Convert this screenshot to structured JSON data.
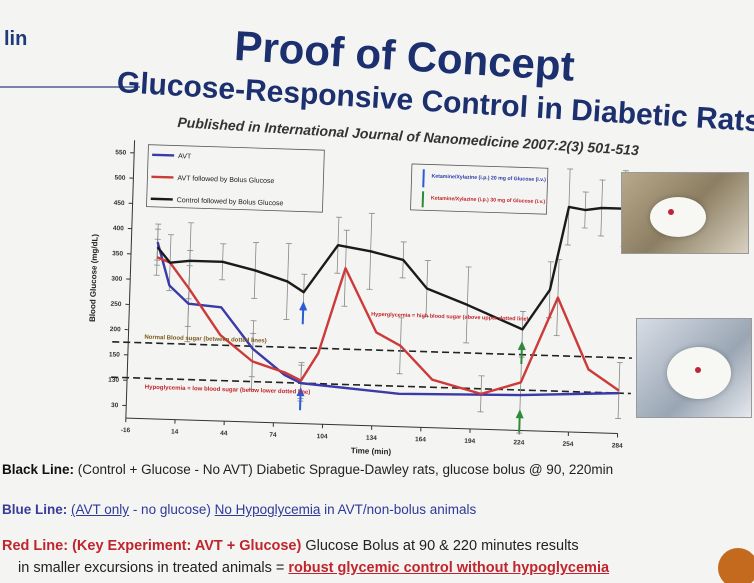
{
  "slide": {
    "corner_label": "lin",
    "title": "Proof of Concept",
    "subtitle": "Glucose-Responsive Control in Diabetic Rats",
    "citation": "Published in International Journal of Nanomedicine 2007:2(3) 501-513"
  },
  "chart_data": {
    "type": "line",
    "title": "",
    "xlabel": "Time (min)",
    "ylabel": "Blood Glucose (mg/dL)",
    "xlim": [
      -16,
      284
    ],
    "ylim": [
      0,
      550
    ],
    "x_ticks": [
      "-16",
      "14",
      "44",
      "74",
      "104",
      "134",
      "164",
      "194",
      "224",
      "254",
      "284"
    ],
    "y_ticks": [
      "30",
      "130",
      "150",
      "200",
      "250",
      "300",
      "350",
      "400",
      "450",
      "500",
      "550"
    ],
    "series": [
      {
        "name": "AVT",
        "color": "#3a3aa8",
        "x": [
          0,
          8,
          20,
          40,
          60,
          80,
          90,
          150,
          224,
          284
        ],
        "y": [
          350,
          265,
          230,
          225,
          145,
          95,
          80,
          65,
          70,
          80
        ]
      },
      {
        "name": "AVT followed by Bolus Glucose",
        "color": "#cc3a3a",
        "x": [
          0,
          8,
          20,
          40,
          60,
          80,
          90,
          100,
          115,
          135,
          150,
          170,
          200,
          224,
          245,
          265,
          284
        ],
        "y": [
          320,
          310,
          260,
          170,
          120,
          100,
          85,
          140,
          310,
          185,
          160,
          95,
          70,
          95,
          265,
          125,
          85
        ]
      },
      {
        "name": "Control followed by Bolus Glucose",
        "color": "#1a1a1a",
        "x": [
          0,
          8,
          20,
          40,
          60,
          80,
          90,
          110,
          130,
          150,
          165,
          190,
          224,
          240,
          250,
          260,
          270,
          284
        ],
        "y": [
          340,
          310,
          315,
          315,
          300,
          280,
          260,
          355,
          345,
          330,
          275,
          245,
          200,
          280,
          445,
          440,
          445,
          445
        ]
      }
    ],
    "reference_lines": [
      {
        "label": "upper",
        "y": 150
      },
      {
        "label": "lower",
        "y": 80
      }
    ],
    "annotations": [
      {
        "id": "injection_blue",
        "text": "Ketamine/Xylazine (i.p.) 20 mg of Glucose (i.v.)"
      },
      {
        "id": "injection_green",
        "text": "Ketamine/Xylazine (i.p.) 30 mg of Glucose (i.v.)"
      },
      {
        "id": "hyper",
        "text": "Hyperglycemia = high blood sugar (above upper dotted line)"
      },
      {
        "id": "normal",
        "text": "Normal Blood sugar (between dotted lines)"
      },
      {
        "id": "hypo",
        "text": "Hypoglycemia = low blood sugar (below lower dotted line)"
      }
    ],
    "legend_position": "top-left"
  },
  "captions": {
    "black_label": "Black Line:",
    "black_text": " (Control + Glucose - No AVT) Diabetic Sprague-Dawley rats, glucose bolus @ 90, 220min",
    "blue_label": "Blue Line:",
    "blue_part1": "(AVT only",
    "blue_part2": " - no glucose) ",
    "blue_part3": "No Hypoglycemia",
    "blue_part4": " in AVT/non-bolus animals",
    "red_label": "Red Line: (Key Experiment: AVT + Glucose)",
    "red_text": " Glucose Bolus at 90 & 220 minutes results",
    "red_line2_pre": "in smaller excursions in treated animals = ",
    "red_line2_emph": "robust glycemic control without hypoglycemia"
  },
  "colors": {
    "title": "#1c2f6e",
    "avt": "#3a3aa8",
    "avt_bolus": "#cc3a3a",
    "control": "#1a1a1a",
    "arrow_blue": "#2a5bd8",
    "arrow_green": "#2e8a3a"
  }
}
